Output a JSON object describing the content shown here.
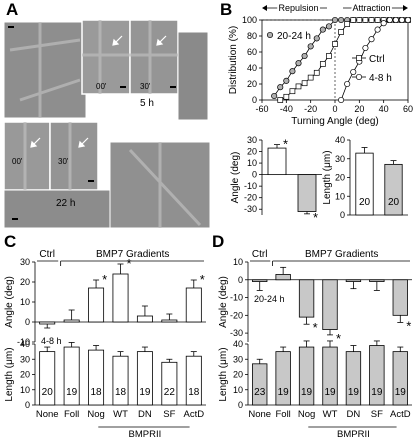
{
  "panels": {
    "A": "A",
    "B": "B",
    "C": "C",
    "D": "D"
  },
  "micro": {
    "label_5h": "5 h",
    "label_22h": "22 h",
    "t00_top": "00'",
    "t30_top": "30'",
    "t00_bot": "00'",
    "t30_bot": "30'"
  },
  "chart_data": [
    {
      "type": "line",
      "panel": "B",
      "xlabel": "Turning Angle (deg)",
      "ylabel": "Distribution (%)",
      "xlim": [
        -60,
        60
      ],
      "ylim": [
        0,
        100
      ],
      "xticks": [
        "-60",
        "-40",
        "-20",
        "0",
        "20",
        "40",
        "60"
      ],
      "yticks": [
        "0",
        "20",
        "40",
        "60",
        "80",
        "100"
      ],
      "arrow_left": "Repulsion",
      "arrow_right": "Attraction",
      "series": [
        {
          "name": "20-24 h",
          "marker": "filled-circle",
          "x": [
            -50,
            -45,
            -40,
            -35,
            -30,
            -25,
            -20,
            -15,
            -10,
            -5,
            0,
            5,
            10,
            15,
            20,
            25,
            30,
            35,
            40,
            45,
            50,
            55,
            60
          ],
          "y": [
            5,
            16,
            24,
            36,
            46,
            55,
            67,
            77,
            88,
            92,
            100,
            100,
            100,
            100,
            100,
            100,
            100,
            100,
            100,
            100,
            100,
            100,
            100
          ]
        },
        {
          "name": "Ctrl",
          "marker": "open-square",
          "x": [
            -45,
            -40,
            -35,
            -30,
            -25,
            -20,
            -15,
            -10,
            -5,
            0,
            5,
            10,
            15,
            20,
            25,
            30,
            35,
            40,
            45,
            50,
            55,
            60
          ],
          "y": [
            0,
            4,
            11,
            17,
            21,
            28,
            34,
            45,
            55,
            70,
            85,
            95,
            100,
            100,
            100,
            100,
            100,
            100,
            100,
            100,
            100,
            100
          ]
        },
        {
          "name": "4-8 h",
          "marker": "open-circle",
          "x": [
            5,
            10,
            15,
            20,
            25,
            30,
            35,
            40,
            45,
            50,
            55,
            60
          ],
          "y": [
            0,
            20,
            35,
            48,
            65,
            76,
            88,
            96,
            100,
            100,
            100,
            100
          ]
        }
      ]
    },
    {
      "type": "bar",
      "panel": "B-angle",
      "ylabel": "Angle (deg)",
      "ylim": [
        -35,
        30
      ],
      "yticks": [
        "-30",
        "-20",
        "-10",
        "0",
        "10",
        "20",
        "30"
      ],
      "categories": [
        "Ctrl",
        "20-24 h"
      ],
      "values": [
        23,
        -32
      ],
      "errors": [
        3,
        2
      ],
      "significant": [
        true,
        true
      ]
    },
    {
      "type": "bar",
      "panel": "B-length",
      "ylabel": "Length (μm)",
      "ylim": [
        0,
        40
      ],
      "yticks": [
        "0",
        "10",
        "20",
        "30",
        "40"
      ],
      "categories": [
        "Ctrl",
        "20-24 h"
      ],
      "values": [
        33,
        27
      ],
      "errors": [
        3,
        2
      ],
      "n": [
        "20",
        "20"
      ]
    },
    {
      "type": "bar",
      "panel": "C-angle",
      "ylabel": "Angle (deg)",
      "ylim": [
        -10,
        30
      ],
      "yticks": [
        "-10",
        "0",
        "10",
        "20",
        "30"
      ],
      "ctrl_label": "Ctrl",
      "group_label": "BMP7 Gradients",
      "inner_label": "4-8 h",
      "categories": [
        "None",
        "Foll",
        "Nog",
        "WT",
        "DN",
        "SF",
        "ActD"
      ],
      "values": [
        -1,
        1,
        17,
        24,
        3,
        1,
        17
      ],
      "errors": [
        2,
        5,
        4,
        5,
        5,
        3,
        4
      ],
      "significant": [
        false,
        false,
        true,
        true,
        false,
        false,
        true
      ]
    },
    {
      "type": "bar",
      "panel": "C-length",
      "ylabel": "Length (μm)",
      "ylim": [
        0,
        40
      ],
      "yticks": [
        "0",
        "10",
        "20",
        "30",
        "40"
      ],
      "categories": [
        "None",
        "Foll",
        "Nog",
        "WT",
        "DN",
        "SF",
        "ActD"
      ],
      "values": [
        35,
        38,
        36,
        32,
        35,
        28,
        32
      ],
      "errors": [
        3,
        3,
        3,
        3,
        3,
        2,
        3
      ],
      "n": [
        "20",
        "19",
        "18",
        "18",
        "19",
        "22",
        "18"
      ],
      "group_sublabel": "BMPRII"
    },
    {
      "type": "bar",
      "panel": "D-angle",
      "ylabel": "Angle (deg)",
      "ylim": [
        -35,
        10
      ],
      "yticks": [
        "-30",
        "-20",
        "-10",
        "0",
        "10"
      ],
      "ctrl_label": "Ctrl",
      "group_label": "BMP7 Gradients",
      "inner_label": "20-24 h",
      "categories": [
        "None",
        "Foll",
        "Nog",
        "WT",
        "DN",
        "SF",
        "ActD"
      ],
      "values": [
        -1,
        3,
        -21,
        -28,
        -1,
        -1,
        -20
      ],
      "errors": [
        5,
        4,
        4,
        3,
        4,
        5,
        4
      ],
      "significant": [
        false,
        false,
        true,
        true,
        false,
        false,
        true
      ]
    },
    {
      "type": "bar",
      "panel": "D-length",
      "ylabel": "Length (μm)",
      "ylim": [
        0,
        40
      ],
      "yticks": [
        "0",
        "10",
        "20",
        "30",
        "40"
      ],
      "categories": [
        "None",
        "Foll",
        "Nog",
        "WT",
        "DN",
        "SF",
        "ActD"
      ],
      "values": [
        27,
        35,
        38,
        38,
        35,
        39,
        35
      ],
      "errors": [
        3,
        3,
        4,
        4,
        4,
        3,
        3
      ],
      "n": [
        "23",
        "19",
        "19",
        "19",
        "19",
        "19",
        "19"
      ],
      "group_sublabel": "BMPRII"
    }
  ]
}
